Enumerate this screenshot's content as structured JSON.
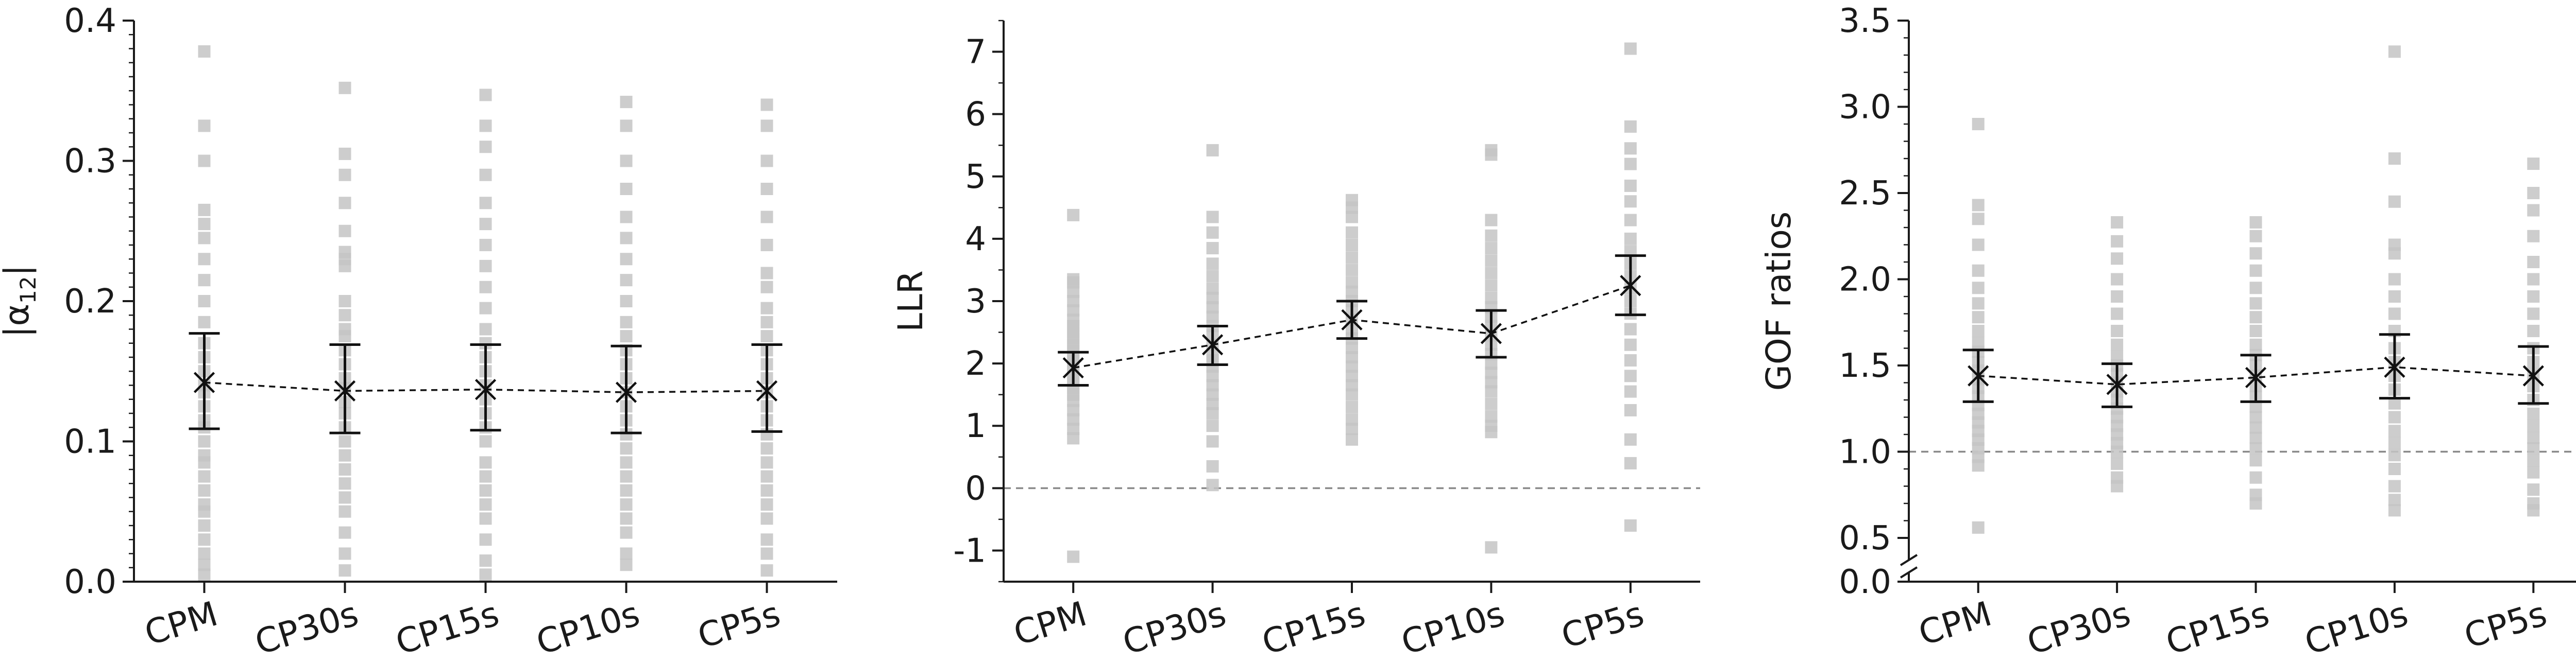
{
  "chart_data": [
    {
      "type": "scatter",
      "ylabel_main": "|α",
      "ylabel_sub": "12",
      "ylabel_tail": "|",
      "categories": [
        "CPM",
        "CP30s",
        "CP15s",
        "CP10s",
        "CP5s"
      ],
      "ylim": [
        0.0,
        0.4
      ],
      "yticks": [
        0.0,
        0.1,
        0.2,
        0.3,
        0.4
      ],
      "ytick_labels": [
        "0.0",
        "0.1",
        "0.2",
        "0.3",
        "0.4"
      ],
      "minor_step": 0.01,
      "reference_line": 0.0,
      "mean": [
        0.142,
        0.136,
        0.137,
        0.135,
        0.136
      ],
      "err_low": [
        0.109,
        0.106,
        0.108,
        0.106,
        0.107
      ],
      "err_high": [
        0.177,
        0.169,
        0.169,
        0.168,
        0.169
      ],
      "individual_points": [
        [
          0.005,
          0.012,
          0.02,
          0.03,
          0.04,
          0.05,
          0.055,
          0.065,
          0.075,
          0.085,
          0.09,
          0.1,
          0.11,
          0.115,
          0.125,
          0.135,
          0.14,
          0.15,
          0.16,
          0.17,
          0.185,
          0.2,
          0.215,
          0.23,
          0.245,
          0.255,
          0.265,
          0.3,
          0.325,
          0.378
        ],
        [
          0.008,
          0.02,
          0.035,
          0.05,
          0.06,
          0.07,
          0.08,
          0.09,
          0.1,
          0.11,
          0.12,
          0.128,
          0.138,
          0.145,
          0.155,
          0.165,
          0.175,
          0.18,
          0.19,
          0.2,
          0.225,
          0.23,
          0.235,
          0.25,
          0.27,
          0.29,
          0.305,
          0.352
        ],
        [
          0.005,
          0.015,
          0.03,
          0.045,
          0.055,
          0.065,
          0.075,
          0.085,
          0.1,
          0.11,
          0.12,
          0.13,
          0.14,
          0.15,
          0.16,
          0.17,
          0.18,
          0.195,
          0.21,
          0.225,
          0.24,
          0.255,
          0.27,
          0.29,
          0.31,
          0.325,
          0.347
        ],
        [
          0.012,
          0.02,
          0.035,
          0.045,
          0.055,
          0.065,
          0.075,
          0.085,
          0.095,
          0.105,
          0.115,
          0.125,
          0.135,
          0.145,
          0.155,
          0.165,
          0.175,
          0.185,
          0.2,
          0.215,
          0.23,
          0.245,
          0.26,
          0.28,
          0.3,
          0.325,
          0.342
        ],
        [
          0.008,
          0.02,
          0.03,
          0.045,
          0.055,
          0.065,
          0.075,
          0.085,
          0.095,
          0.105,
          0.115,
          0.125,
          0.135,
          0.145,
          0.155,
          0.165,
          0.175,
          0.185,
          0.195,
          0.21,
          0.22,
          0.24,
          0.26,
          0.28,
          0.3,
          0.325,
          0.34
        ]
      ]
    },
    {
      "type": "scatter",
      "ylabel": "LLR",
      "categories": [
        "CPM",
        "CP30s",
        "CP15s",
        "CP10s",
        "CP5s"
      ],
      "ylim": [
        -1.5,
        7.5
      ],
      "yticks": [
        -1,
        0,
        1,
        2,
        3,
        4,
        5,
        6,
        7
      ],
      "ytick_labels": [
        "-1",
        "0",
        "1",
        "2",
        "3",
        "4",
        "5",
        "6",
        "7"
      ],
      "minor_step": 0.5,
      "reference_line": 0,
      "mean": [
        1.93,
        2.3,
        2.7,
        2.48,
        3.25
      ],
      "err_low": [
        1.65,
        1.98,
        2.4,
        2.1,
        2.78
      ],
      "err_high": [
        2.18,
        2.6,
        3.0,
        2.85,
        3.73
      ],
      "individual_points": [
        [
          -1.1,
          0.8,
          0.95,
          1.1,
          1.25,
          1.4,
          1.5,
          1.6,
          1.7,
          1.8,
          1.9,
          2.0,
          2.1,
          2.2,
          2.3,
          2.4,
          2.5,
          2.6,
          2.7,
          2.85,
          3.0,
          3.15,
          3.3,
          3.35,
          4.38
        ],
        [
          0.05,
          0.35,
          0.75,
          1.0,
          1.2,
          1.35,
          1.5,
          1.65,
          1.8,
          1.95,
          2.05,
          2.15,
          2.3,
          2.45,
          2.6,
          2.75,
          2.9,
          3.05,
          3.2,
          3.4,
          3.6,
          3.85,
          4.1,
          4.35,
          5.42
        ],
        [
          0.78,
          0.95,
          1.1,
          1.3,
          1.5,
          1.65,
          1.8,
          1.95,
          2.1,
          2.25,
          2.4,
          2.55,
          2.7,
          2.85,
          3.0,
          3.15,
          3.3,
          3.5,
          3.7,
          3.9,
          4.1,
          4.35,
          4.5,
          4.62
        ],
        [
          -0.95,
          0.9,
          1.0,
          1.15,
          1.35,
          1.55,
          1.7,
          1.85,
          2.0,
          2.15,
          2.3,
          2.45,
          2.6,
          2.75,
          2.9,
          3.05,
          3.25,
          3.45,
          3.65,
          3.85,
          4.05,
          4.3,
          5.35,
          5.42
        ],
        [
          -0.6,
          0.4,
          0.78,
          1.25,
          1.55,
          1.8,
          2.05,
          2.3,
          2.55,
          2.8,
          3.0,
          3.2,
          3.4,
          3.6,
          3.8,
          4.0,
          4.3,
          4.6,
          4.85,
          5.2,
          5.45,
          5.8,
          7.05
        ]
      ]
    },
    {
      "type": "scatter",
      "ylabel": "GOF ratios",
      "categories": [
        "CPM",
        "CP30s",
        "CP15s",
        "CP10s",
        "CP5s"
      ],
      "ylim": [
        0.0,
        3.5
      ],
      "axis_break": true,
      "yticks": [
        0.0,
        0.5,
        1.0,
        1.5,
        2.0,
        2.5,
        3.0,
        3.5
      ],
      "ytick_labels": [
        "0.0",
        "0.5",
        "1.0",
        "1.5",
        "2.0",
        "2.5",
        "3.0",
        "3.5"
      ],
      "minor_step": 0.1,
      "reference_line": 1.0,
      "mean": [
        1.44,
        1.39,
        1.43,
        1.49,
        1.44
      ],
      "err_low": [
        1.29,
        1.26,
        1.29,
        1.31,
        1.28
      ],
      "err_high": [
        1.59,
        1.51,
        1.56,
        1.68,
        1.61
      ],
      "individual_points": [
        [
          0.56,
          0.92,
          0.97,
          1.02,
          1.07,
          1.12,
          1.17,
          1.22,
          1.27,
          1.32,
          1.37,
          1.42,
          1.47,
          1.52,
          1.58,
          1.63,
          1.7,
          1.78,
          1.86,
          1.95,
          2.05,
          2.2,
          2.35,
          2.43,
          2.9
        ],
        [
          0.8,
          0.85,
          0.93,
          1.0,
          1.05,
          1.1,
          1.15,
          1.2,
          1.25,
          1.3,
          1.35,
          1.4,
          1.45,
          1.5,
          1.55,
          1.62,
          1.7,
          1.8,
          1.9,
          2.0,
          2.12,
          2.22,
          2.33
        ],
        [
          0.7,
          0.75,
          0.85,
          0.95,
          1.02,
          1.08,
          1.14,
          1.2,
          1.26,
          1.32,
          1.38,
          1.44,
          1.5,
          1.56,
          1.62,
          1.7,
          1.78,
          1.86,
          1.95,
          2.05,
          2.15,
          2.25,
          2.33
        ],
        [
          0.66,
          0.72,
          0.8,
          0.9,
          0.98,
          1.05,
          1.12,
          1.2,
          1.28,
          1.36,
          1.44,
          1.52,
          1.6,
          1.7,
          1.8,
          1.9,
          2.0,
          2.15,
          2.2,
          2.45,
          2.7,
          3.32
        ],
        [
          0.66,
          0.7,
          0.78,
          0.88,
          0.95,
          1.02,
          1.08,
          1.15,
          1.22,
          1.3,
          1.38,
          1.45,
          1.52,
          1.6,
          1.7,
          1.8,
          1.9,
          2.0,
          2.1,
          2.25,
          2.4,
          2.5,
          2.67
        ]
      ]
    }
  ]
}
